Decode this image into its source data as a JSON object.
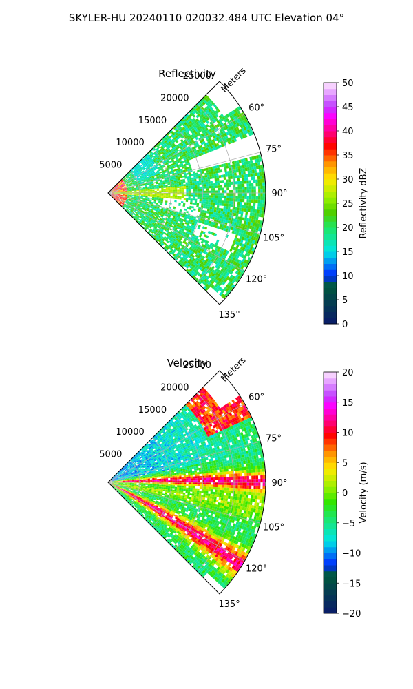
{
  "figure": {
    "title": "SKYLER-HU  20240110  020032.484 UTC Elevation 04°"
  },
  "chart_data": [
    {
      "type": "heatmap",
      "projection": "polar-sector",
      "title": "Reflectivity",
      "range_axis_label": "Meters",
      "range_ticks": [
        5000,
        10000,
        15000,
        20000,
        25000
      ],
      "range_ticks_text": [
        "5000",
        "10000",
        "15000",
        "20000",
        "25000"
      ],
      "range_max": 25000,
      "azimuth_ticks": [
        60,
        75,
        90,
        105,
        120,
        135
      ],
      "azimuth_ticks_text": [
        "60°",
        "75°",
        "90°",
        "105°",
        "120°",
        "135°"
      ],
      "azimuth_range": [
        45,
        135
      ],
      "grid": true,
      "colorbar": {
        "label": "Reflectivity dBZ",
        "range": [
          0,
          50
        ],
        "ticks": [
          0,
          5,
          10,
          15,
          20,
          25,
          30,
          35,
          40,
          45,
          50
        ],
        "ticks_text": [
          "0",
          "5",
          "10",
          "15",
          "20",
          "25",
          "30",
          "35",
          "40",
          "45",
          "50"
        ]
      },
      "colors": {
        "low": "#0a1a6a",
        "cyan": "#00e5e5",
        "green": "#4ccf00",
        "yellow": "#ffea00",
        "orange": "#ff9a00",
        "red": "#ff0000",
        "magenta": "#ff00ff",
        "high": "#ffe6ff"
      }
    },
    {
      "type": "heatmap",
      "projection": "polar-sector",
      "title": "Velocity",
      "range_axis_label": "Meters",
      "range_ticks": [
        5000,
        10000,
        15000,
        20000,
        25000
      ],
      "range_ticks_text": [
        "5000",
        "10000",
        "15000",
        "20000",
        "25000"
      ],
      "range_max": 25000,
      "azimuth_ticks": [
        60,
        75,
        90,
        105,
        120,
        135
      ],
      "azimuth_ticks_text": [
        "60°",
        "75°",
        "90°",
        "105°",
        "120°",
        "135°"
      ],
      "azimuth_range": [
        45,
        135
      ],
      "grid": true,
      "colorbar": {
        "label": "Velocity (m/s)",
        "range": [
          -20,
          20
        ],
        "ticks": [
          -20,
          -15,
          -10,
          -5,
          0,
          5,
          10,
          15,
          20
        ],
        "ticks_text": [
          "−20",
          "−15",
          "−10",
          "−5",
          "0",
          "5",
          "10",
          "15",
          "20"
        ]
      },
      "colors": {
        "low": "#0a1a6a",
        "cyan": "#00e5e5",
        "green": "#2ee600",
        "yellow": "#ffea00",
        "orange": "#ff9a00",
        "red": "#ff0000",
        "magenta": "#ff00ff",
        "high": "#ffe6ff"
      }
    }
  ]
}
